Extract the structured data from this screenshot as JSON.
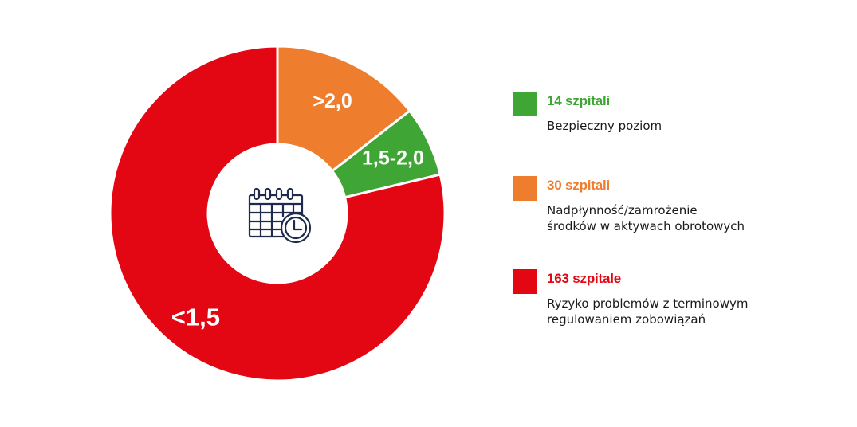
{
  "chart_data": {
    "type": "pie",
    "style": "donut",
    "categories": [
      ">2,0",
      "1,5-2,0",
      "<1,5"
    ],
    "values": [
      30,
      14,
      163
    ],
    "colors": [
      "#ee7d2e",
      "#3fa535",
      "#e30613"
    ],
    "center_icon": "calendar-clock-icon"
  },
  "legend": {
    "items": [
      {
        "title": "14 szpitali",
        "desc1": "Bezpieczny poziom",
        "desc2": "",
        "color": "#3fa535"
      },
      {
        "title": "30 szpitali",
        "desc1": "Nadpłynność/zamrożenie",
        "desc2": "środków w aktywach obrotowych",
        "color": "#ee7d2e"
      },
      {
        "title": "163 szpitale",
        "desc1": "Ryzyko problemów z terminowym",
        "desc2": "regulowaniem zobowiązań",
        "color": "#e30613"
      }
    ]
  }
}
